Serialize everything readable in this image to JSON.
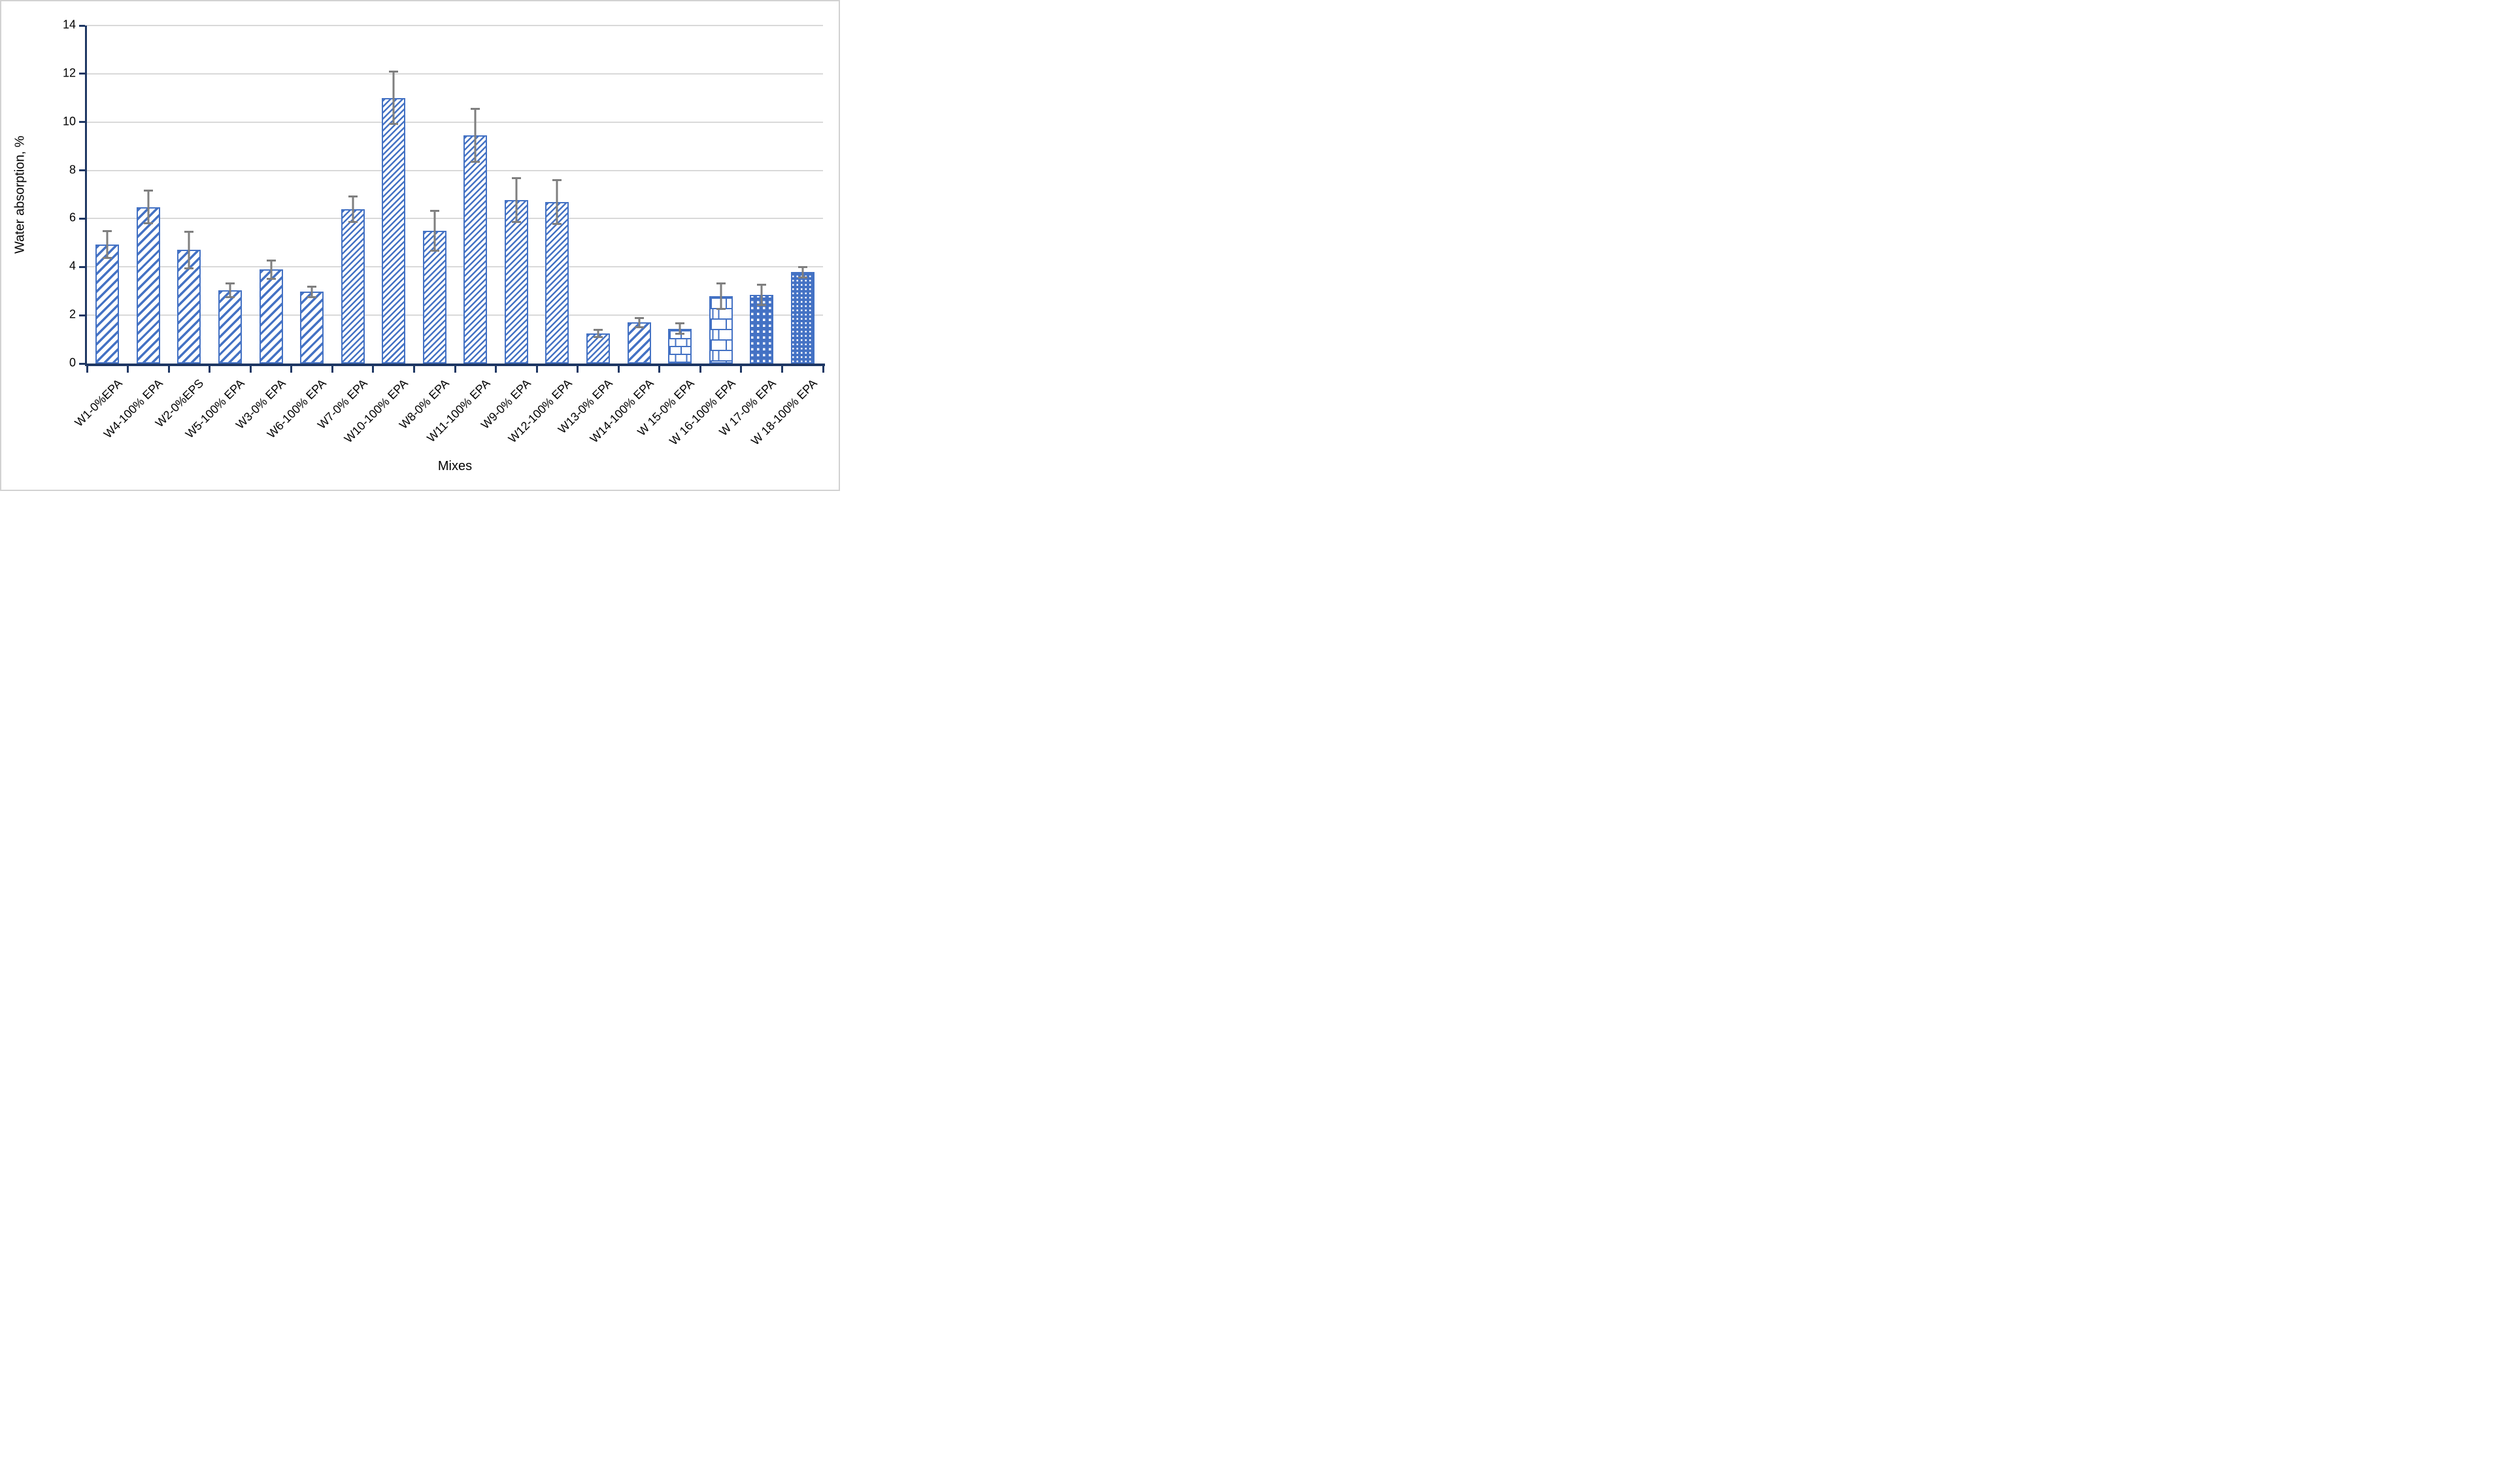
{
  "figure": {
    "background": "#FFFFFF",
    "border_color": "#D2D2D2"
  },
  "chart_data": {
    "type": "bar",
    "title": "",
    "xlabel": "Mixes",
    "ylabel": "Water absorption, %",
    "ylim": [
      0,
      14
    ],
    "yticks": [
      0,
      2,
      4,
      6,
      8,
      10,
      12,
      14
    ],
    "grid": "horizontal",
    "legend_position": "none",
    "error_bars": true,
    "categories": [
      "W1-0%EPA",
      "W4-100% EPA",
      "W2-0%EPS",
      "W5-100% EPA",
      "W3-0% EPA",
      "W6-100% EPA",
      "W7-0% EPA",
      "W10-100% EPA",
      "W8-0% EPA",
      "W11-100% EPA",
      "W9-0% EPA",
      "W12-100% EPA",
      "W13-0% EPA",
      "W14-100% EPA",
      "W 15-0% EPA",
      "W 16-100% EPA",
      "W 17-0% EPA",
      "W 18-100% EPA"
    ],
    "values": [
      4.93,
      6.48,
      4.71,
      3.03,
      3.9,
      2.97,
      6.4,
      11.0,
      5.5,
      9.45,
      6.77,
      6.69,
      1.25,
      1.7,
      1.45,
      2.8,
      2.85,
      3.78
    ],
    "errors": [
      0.6,
      0.72,
      0.8,
      0.32,
      0.42,
      0.25,
      0.57,
      1.12,
      0.87,
      1.15,
      0.95,
      0.95,
      0.2,
      0.23,
      0.25,
      0.57,
      0.46,
      0.25
    ],
    "bar_patterns": [
      "diagonal-wide-hatch",
      "diagonal-wide-hatch",
      "diagonal-wide-hatch",
      "diagonal-wide-hatch",
      "diagonal-wide-hatch",
      "diagonal-wide-hatch",
      "diagonal-fine-hatch",
      "diagonal-fine-hatch",
      "diagonal-fine-hatch",
      "diagonal-fine-hatch",
      "diagonal-fine-hatch",
      "diagonal-fine-hatch",
      "diagonal-fine-hatch",
      "diagonal-wide-hatch",
      "brick-small-hatch",
      "brick-large-hatch",
      "dotted-grid-large",
      "dotted-grid-small"
    ],
    "colors": {
      "bar": "#4472C4",
      "bar_fill": "#FFFFFF",
      "error_bar": "#7F7F7F",
      "axis": "#1F3864",
      "gridline": "#D9D9D9",
      "text": "#000000"
    }
  }
}
